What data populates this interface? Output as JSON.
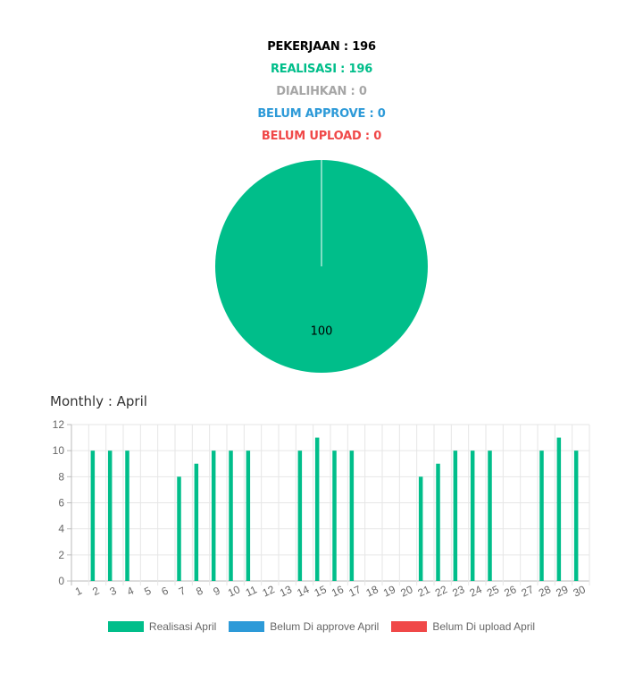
{
  "summary": {
    "pekerjaan": "PEKERJAAN : 196",
    "realisasi": "REALISASI : 196",
    "dialihkan": "DIALIHKAN : 0",
    "belum_approve": "BELUM APPROVE : 0",
    "belum_upload": "BELUM UPLOAD : 0"
  },
  "colors": {
    "pekerjaan": "#000000",
    "realisasi": "#00be8a",
    "dialihkan": "#a6a6a6",
    "belum_approve": "#2d9ad8",
    "belum_upload": "#f04848"
  },
  "chart_data": [
    {
      "type": "pie",
      "values": [
        100
      ],
      "labels": [
        "100"
      ],
      "colors": [
        "#00be8a"
      ]
    },
    {
      "type": "bar",
      "title": "Monthly : April",
      "categories": [
        "1",
        "2",
        "3",
        "4",
        "5",
        "6",
        "7",
        "8",
        "9",
        "10",
        "11",
        "12",
        "13",
        "14",
        "15",
        "16",
        "17",
        "18",
        "19",
        "20",
        "21",
        "22",
        "23",
        "24",
        "25",
        "26",
        "27",
        "28",
        "29",
        "30"
      ],
      "series": [
        {
          "name": "Realisasi April",
          "color": "#00be8a",
          "values": [
            0,
            10,
            10,
            10,
            0,
            0,
            8,
            9,
            10,
            10,
            10,
            0,
            0,
            10,
            11,
            10,
            10,
            0,
            0,
            0,
            8,
            9,
            10,
            10,
            10,
            0,
            0,
            10,
            11,
            10
          ]
        },
        {
          "name": "Belum Di approve April",
          "color": "#2d9ad8",
          "values": [
            0,
            0,
            0,
            0,
            0,
            0,
            0,
            0,
            0,
            0,
            0,
            0,
            0,
            0,
            0,
            0,
            0,
            0,
            0,
            0,
            0,
            0,
            0,
            0,
            0,
            0,
            0,
            0,
            0,
            0
          ]
        },
        {
          "name": "Belum Di upload April",
          "color": "#f04848",
          "values": [
            0,
            0,
            0,
            0,
            0,
            0,
            0,
            0,
            0,
            0,
            0,
            0,
            0,
            0,
            0,
            0,
            0,
            0,
            0,
            0,
            0,
            0,
            0,
            0,
            0,
            0,
            0,
            0,
            0,
            0
          ]
        }
      ],
      "ylim": [
        0,
        12
      ],
      "yticks": [
        0,
        2,
        4,
        6,
        8,
        10,
        12
      ],
      "grid": true,
      "legend": "bottom"
    }
  ]
}
